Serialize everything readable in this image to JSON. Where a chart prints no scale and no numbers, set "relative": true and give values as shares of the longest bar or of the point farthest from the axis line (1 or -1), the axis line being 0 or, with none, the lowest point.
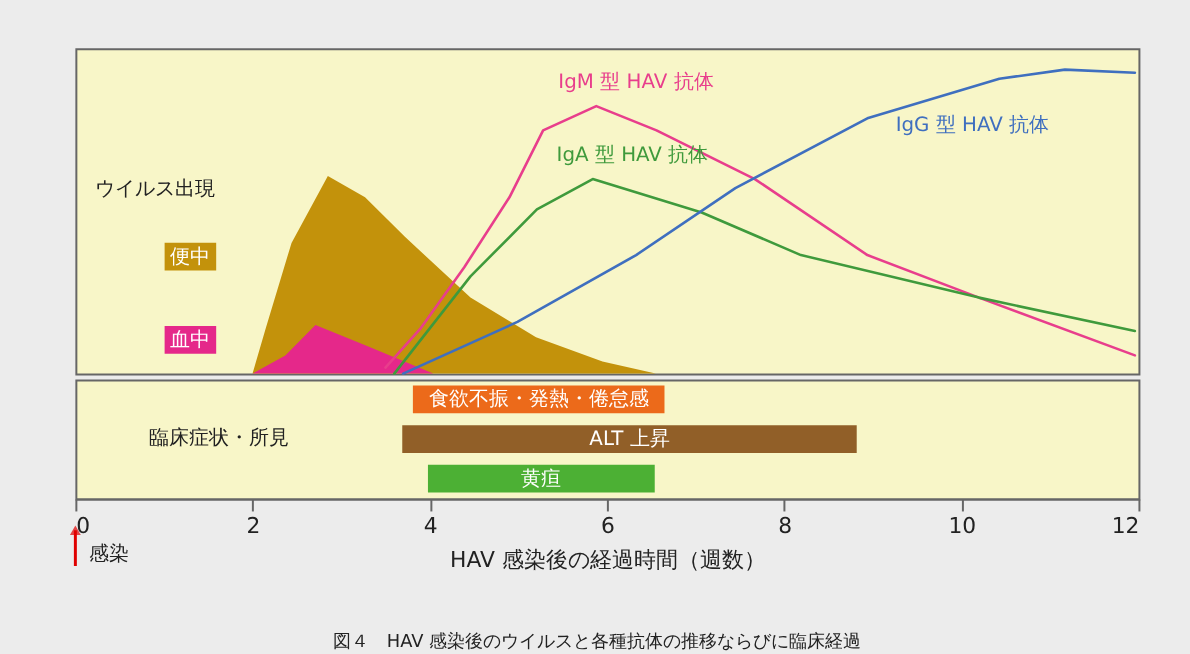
{
  "chart_data": [
    {
      "type": "line",
      "relative": true,
      "xlim": [
        0,
        12
      ],
      "tick_labels": false,
      "legend": "left",
      "legend_title": "ウイルス出現",
      "series": [
        {
          "name": "便中",
          "type": "area",
          "color": "#c3920b",
          "x": [
            2.0,
            2.15,
            2.44,
            2.85,
            3.27,
            3.72,
            4.46,
            5.2,
            5.95,
            6.55
          ],
          "values": [
            0,
            0.15,
            0.43,
            0.65,
            0.58,
            0.45,
            0.25,
            0.12,
            0.04,
            0
          ]
        },
        {
          "name": "血中",
          "type": "area",
          "color": "#e5288a",
          "x": [
            2.0,
            2.37,
            2.71,
            3.3,
            4.04
          ],
          "values": [
            0,
            0.06,
            0.16,
            0.09,
            0
          ]
        },
        {
          "name": "IgM 型 HAV 抗体",
          "type": "line",
          "color": "#e83e8c",
          "x": [
            3.5,
            3.9,
            4.39,
            4.9,
            5.28,
            5.88,
            6.56,
            7.67,
            8.94,
            10.2,
            11.96
          ],
          "values": [
            0.02,
            0.15,
            0.35,
            0.58,
            0.8,
            0.88,
            0.8,
            0.64,
            0.39,
            0.25,
            0.06
          ]
        },
        {
          "name": "IgA 型 HAV 抗体",
          "type": "line",
          "color": "#3f9a3c",
          "x": [
            3.6,
            4.46,
            5.21,
            5.84,
            7.07,
            8.19,
            10.2,
            11.96
          ],
          "values": [
            0,
            0.32,
            0.54,
            0.64,
            0.53,
            0.39,
            0.25,
            0.14
          ]
        },
        {
          "name": "IgG 型 HAV 抗体",
          "type": "line",
          "color": "#3f6fbf",
          "x": [
            3.7,
            4.99,
            6.33,
            7.45,
            8.94,
            10.43,
            11.17,
            11.96
          ],
          "values": [
            0,
            0.17,
            0.39,
            0.61,
            0.84,
            0.97,
            1.0,
            0.99
          ]
        }
      ]
    },
    {
      "type": "bar",
      "orientation": "horizontal",
      "categories": [
        "食欲不振・発熱・倦怠感",
        "ALT 上昇",
        "黄疸"
      ],
      "base": [
        3.81,
        3.69,
        3.98
      ],
      "values": [
        2.84,
        5.13,
        2.56
      ],
      "colors": [
        "#ec6a1a",
        "#915f28",
        "#4cb034"
      ],
      "xlim": [
        0,
        12
      ],
      "xticks": [
        0,
        2,
        4,
        6,
        8,
        10,
        12
      ],
      "xlabel": "HAV 感染後の経過時間（週数）",
      "ylabel": "臨床症状・所見",
      "tick_labels": "x",
      "annotations": [
        "感染",
        "図４　HAV 感染後のウイルスと各種抗体の推移ならびに臨床経過"
      ]
    }
  ]
}
